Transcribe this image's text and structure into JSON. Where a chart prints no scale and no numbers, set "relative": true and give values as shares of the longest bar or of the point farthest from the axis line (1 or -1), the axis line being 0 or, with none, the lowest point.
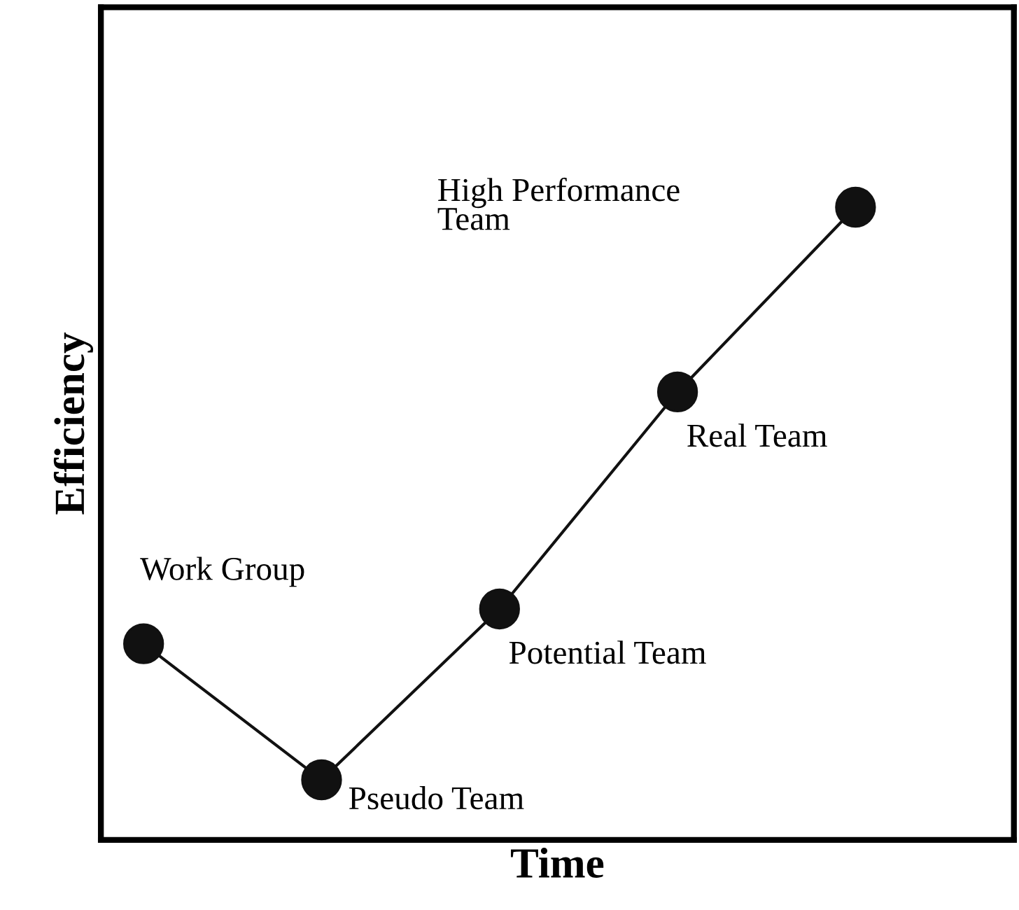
{
  "chart_data": {
    "type": "line",
    "relative": true,
    "xlabel": "Time",
    "ylabel": "Efficiency",
    "categories": [
      null,
      null,
      null,
      null,
      null
    ],
    "series": [
      {
        "color": "#111111",
        "values": [
          0.31,
          0.095,
          0.365,
          0.708,
          1.0
        ]
      }
    ],
    "annotations": [
      "Work Group",
      "Pseudo Team",
      "Potential Team",
      "Real Team",
      "High Performance\nTeam"
    ],
    "marker": "circle",
    "line_style": "solid"
  }
}
